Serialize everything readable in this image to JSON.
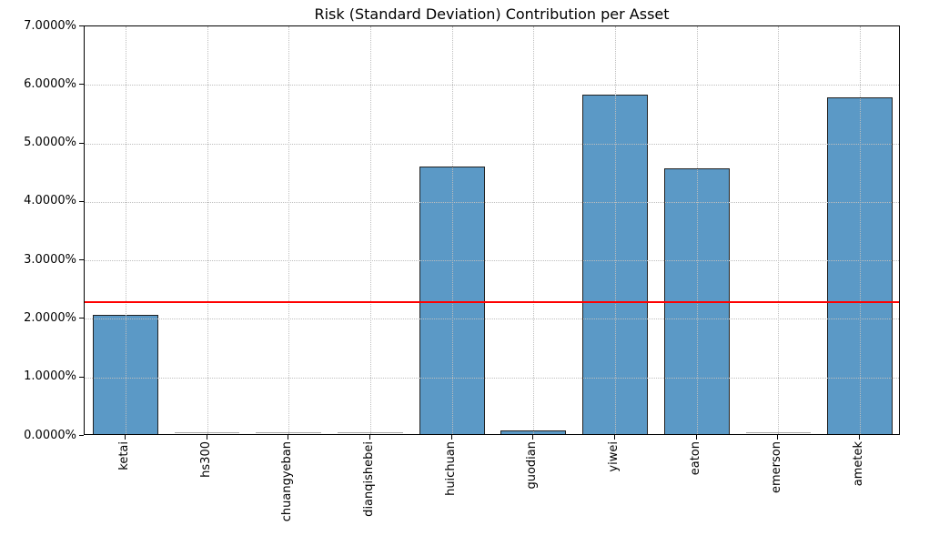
{
  "chart_data": {
    "type": "bar",
    "title": "Risk (Standard Deviation) Contribution per Asset",
    "xlabel": "",
    "ylabel": "",
    "categories": [
      "ketai",
      "hs300",
      "chuangyeban",
      "dianqishebei",
      "huichuan",
      "guodian",
      "yiwei",
      "eaton",
      "emerson",
      "ametek"
    ],
    "values": [
      2.04,
      0.0,
      0.0,
      0.0,
      4.57,
      0.06,
      5.8,
      4.54,
      0.0,
      5.75
    ],
    "values_unit": "%",
    "ylim": [
      0,
      7
    ],
    "yticks": [
      "0.0000%",
      "1.0000%",
      "2.0000%",
      "3.0000%",
      "4.0000%",
      "5.0000%",
      "6.0000%",
      "7.0000%"
    ],
    "grid": "dotted, horizontal and vertical, drawn over bars",
    "legend": "none",
    "reference_line": {
      "value": 2.29,
      "label": "",
      "style": "solid horizontal"
    },
    "bar_width_fraction": 0.8,
    "xtick_rotation_degrees": 90
  },
  "colors": {
    "background": "#ffffff",
    "bar_fill": "#5b99c6",
    "bar_edge": "#222222",
    "zero_bar": "#a8a8a8",
    "reference_line": "#ff0000",
    "grid": "#bebebe",
    "spine": "#000000",
    "text": "#000000"
  }
}
